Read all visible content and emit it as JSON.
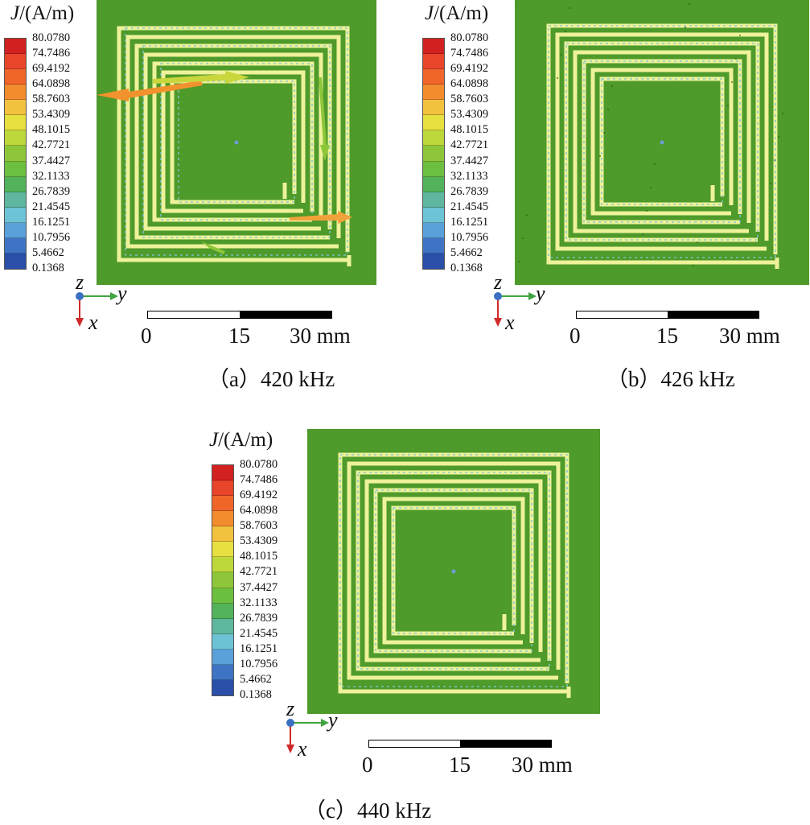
{
  "legend": {
    "title_symbol": "J",
    "title_unit": "/(A/m)",
    "values": [
      "80.0780",
      "74.7486",
      "69.4192",
      "64.0898",
      "58.7603",
      "53.4309",
      "48.1015",
      "42.7721",
      "37.4427",
      "32.1133",
      "26.7839",
      "21.4545",
      "16.1251",
      "10.7956",
      "5.4662",
      "0.1368"
    ],
    "colors": [
      "#d32020",
      "#e8452a",
      "#f0652a",
      "#f28c2c",
      "#f2c23e",
      "#e6e040",
      "#bcd83a",
      "#8ec63a",
      "#6cbf3f",
      "#52b35a",
      "#5fb7a0",
      "#6cc3d6",
      "#5aa0d9",
      "#3f74c4",
      "#2a4fa8"
    ]
  },
  "axes": {
    "z": "z",
    "y": "y",
    "x": "x"
  },
  "scalebar": {
    "tick0": "0",
    "tick1": "15",
    "tick2": "30 mm"
  },
  "colors": {
    "board": "#4e9a2a",
    "trace": "#eef29a",
    "arrow": "#7fc7cf"
  },
  "panels": [
    {
      "id": "a",
      "caption_label": "（a）",
      "caption_freq": "420 kHz"
    },
    {
      "id": "b",
      "caption_label": "（b）",
      "caption_freq": "426 kHz"
    },
    {
      "id": "c",
      "caption_label": "（c）",
      "caption_freq": "440 kHz"
    }
  ]
}
